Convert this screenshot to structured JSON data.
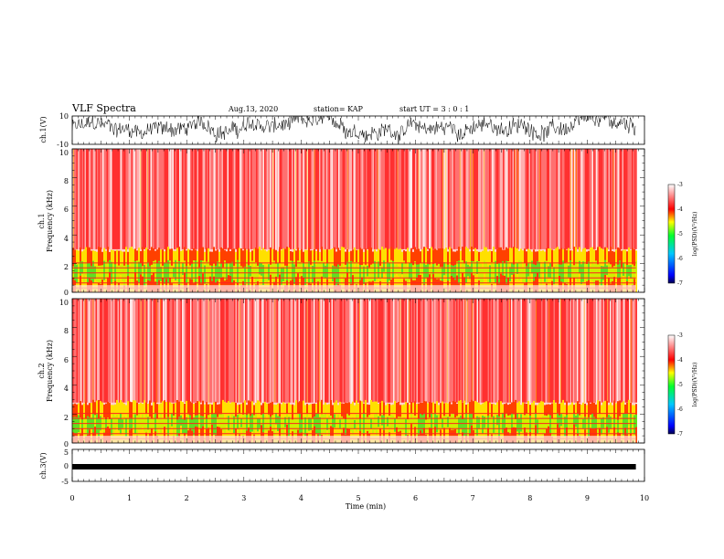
{
  "header": {
    "title": "VLF Spectra",
    "date": "Aug.13, 2020",
    "station": "station= KAP",
    "start": "start  UT =   3 : 0  : 1"
  },
  "chart_data": [
    {
      "type": "line",
      "name": "ch1-waveform",
      "ylabel": "ch.1(V)",
      "ylim": [
        -10,
        10
      ],
      "ytick_labels": [
        "10",
        "-10"
      ],
      "xlim": [
        0,
        10
      ],
      "x_end": 9.85,
      "waveform": {
        "mean": 1.5,
        "amplitude": 8,
        "noise": 5
      }
    },
    {
      "type": "heatmap",
      "name": "ch1-spectrogram",
      "ylabel": "ch.1\nFrequency (kHz)",
      "ylim": [
        0,
        10
      ],
      "ytick_labels": [
        "0",
        "2",
        "4",
        "6",
        "8",
        "10"
      ],
      "xlim": [
        0,
        10
      ],
      "x_end": 9.85,
      "band_top_khz": 3.0,
      "colorbar": {
        "label": "log(PSD)(V²/Hz)",
        "range": [
          -7,
          -3
        ],
        "tick_labels": [
          "-3",
          "-4",
          "-5",
          "-6",
          "-7"
        ]
      }
    },
    {
      "type": "heatmap",
      "name": "ch2-spectrogram",
      "ylabel": "ch.2\nFrequency (kHz)",
      "ylim": [
        0,
        10
      ],
      "ytick_labels": [
        "0",
        "2",
        "4",
        "6",
        "8",
        "10"
      ],
      "xlim": [
        0,
        10
      ],
      "x_end": 9.85,
      "band_top_khz": 2.8,
      "colorbar": {
        "label": "log(PSD)(V²/Hz)",
        "range": [
          -7,
          -3
        ],
        "tick_labels": [
          "-3",
          "-4",
          "-5",
          "-6",
          "-7"
        ]
      }
    },
    {
      "type": "line",
      "name": "ch3-signal",
      "ylabel": "ch.3(V)",
      "ylim": [
        -5,
        5
      ],
      "ytick_labels": [
        "5",
        "0",
        "-5"
      ],
      "xlim": [
        0,
        10
      ],
      "x_end": 9.85,
      "level": 0
    }
  ],
  "xaxis": {
    "label": "Time (min)",
    "tick_labels": [
      "0",
      "1",
      "2",
      "3",
      "4",
      "5",
      "6",
      "7",
      "8",
      "9",
      "10"
    ]
  },
  "colors": {
    "axis": "#000000",
    "spec_red": "#ff2020",
    "spec_yellow": "#ffe000",
    "spec_green": "#20e020"
  }
}
